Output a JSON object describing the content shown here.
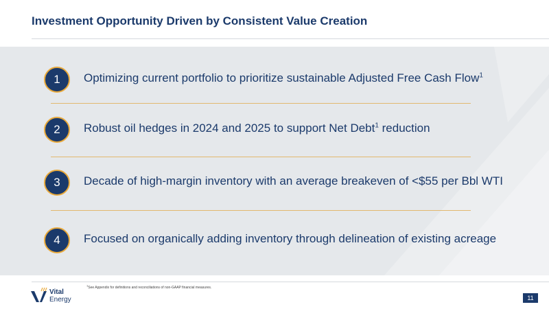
{
  "slide": {
    "title": "Investment Opportunity Driven by Consistent Value Creation",
    "page_number": "11"
  },
  "items": [
    {
      "number": "1",
      "text": "Optimizing current portfolio to prioritize sustainable Adjusted Free Cash Flow",
      "superscript": "1",
      "text_after": ""
    },
    {
      "number": "2",
      "text": "Robust oil hedges in 2024 and 2025 to support Net Debt",
      "superscript": "1",
      "text_after": " reduction"
    },
    {
      "number": "3",
      "text": "Decade of high-margin inventory with an average breakeven of <$55 per Bbl WTI"
    },
    {
      "number": "4",
      "text": "Focused on organically adding inventory through delineation of existing acreage"
    }
  ],
  "footnote": {
    "marker": "1",
    "text": "See Appendix for definitions and reconciliations of non-GAAP financial measures."
  },
  "logo": {
    "line1": "Vital",
    "line2": "Energy"
  },
  "colors": {
    "navy": "#1b3a6b",
    "accent_orange": "#e9a93a",
    "band_gray": "#e5e8eb"
  }
}
